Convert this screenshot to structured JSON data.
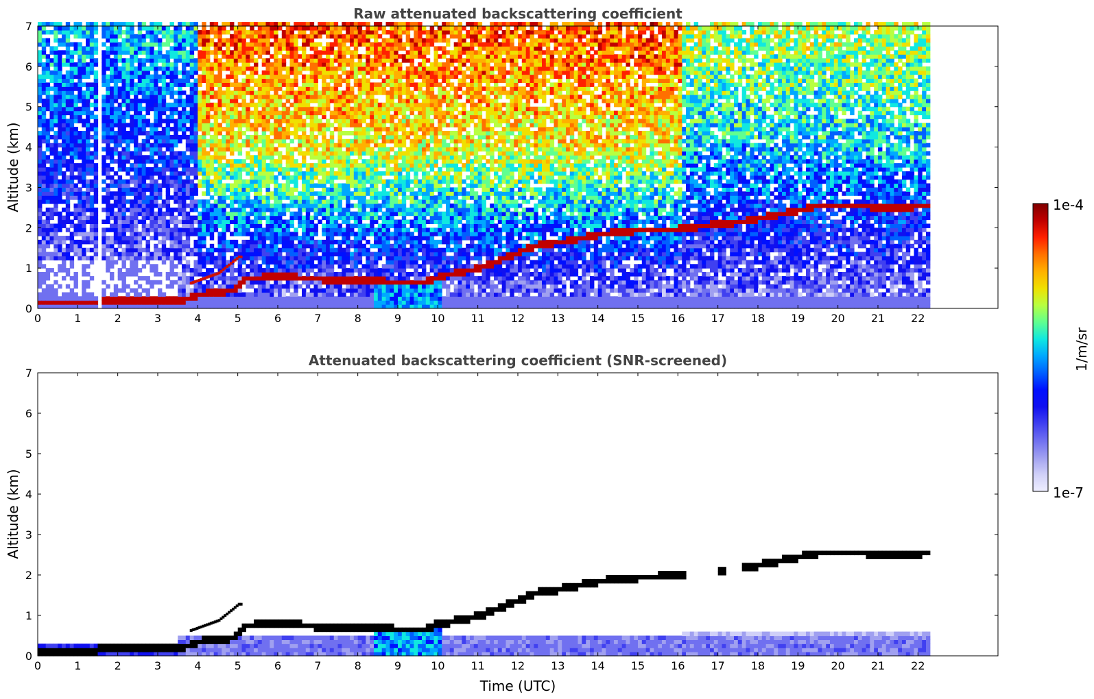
{
  "chart_data": [
    {
      "type": "heatmap",
      "title": "Raw attenuated backscattering coefficient",
      "xlabel": "",
      "ylabel": "Altitude (km)",
      "xlim": [
        0,
        24
      ],
      "ylim": [
        0,
        7
      ],
      "x_ticks": [
        "0",
        "1",
        "2",
        "3",
        "4",
        "5",
        "6",
        "7",
        "8",
        "9",
        "10",
        "11",
        "12",
        "13",
        "14",
        "15",
        "16",
        "17",
        "18",
        "19",
        "20",
        "21",
        "22"
      ],
      "y_ticks": [
        "0",
        "1",
        "2",
        "3",
        "4",
        "5",
        "6",
        "7"
      ],
      "data_end_hour": 22.3,
      "gap_hours": [
        1.45,
        1.55
      ],
      "layer": {
        "description_points_hour_km": [
          [
            0,
            0.08
          ],
          [
            1.4,
            0.08
          ],
          [
            1.6,
            0.15
          ],
          [
            3.5,
            0.12
          ],
          [
            4,
            0.3
          ],
          [
            4.8,
            0.4
          ],
          [
            5.2,
            0.7
          ],
          [
            6,
            0.75
          ],
          [
            7,
            0.68
          ],
          [
            8,
            0.65
          ],
          [
            9,
            0.6
          ],
          [
            9.6,
            0.6
          ],
          [
            10,
            0.75
          ],
          [
            11,
            0.95
          ],
          [
            12,
            1.35
          ],
          [
            12.5,
            1.55
          ],
          [
            13,
            1.6
          ],
          [
            14,
            1.8
          ],
          [
            15,
            1.9
          ],
          [
            15.9,
            1.92
          ],
          [
            17.5,
            2.1
          ],
          [
            18.5,
            2.3
          ],
          [
            19.5,
            2.5
          ],
          [
            20.5,
            2.5
          ],
          [
            21.2,
            2.45
          ],
          [
            22.3,
            2.5
          ]
        ],
        "secondary_points_hour_km": [
          [
            3.8,
            0.6
          ],
          [
            4.5,
            0.85
          ],
          [
            5.0,
            1.25
          ]
        ]
      },
      "colormap": "jet",
      "background_high_altitude_hours": [
        4,
        16
      ]
    },
    {
      "type": "heatmap",
      "title": "Attenuated backscattering coefficient (SNR-screened)",
      "xlabel": "Time (UTC)",
      "ylabel": "Altitude (km)",
      "xlim": [
        0,
        24
      ],
      "ylim": [
        0,
        7
      ],
      "x_ticks": [
        "0",
        "1",
        "2",
        "3",
        "4",
        "5",
        "6",
        "7",
        "8",
        "9",
        "10",
        "11",
        "12",
        "13",
        "14",
        "15",
        "16",
        "17",
        "18",
        "19",
        "20",
        "21",
        "22"
      ],
      "y_ticks": [
        "0",
        "1",
        "2",
        "3",
        "4",
        "5",
        "6",
        "7"
      ],
      "data_end_hour": 22.3,
      "colormap": "jet"
    }
  ],
  "colorbar": {
    "max_label": "1e-4",
    "min_label": "1e-7",
    "unit_label": "1/m/sr",
    "colors": [
      "#7f0000",
      "#c00000",
      "#ff2000",
      "#ff7000",
      "#ffb000",
      "#f0e000",
      "#b8ff40",
      "#60ff90",
      "#10e8e0",
      "#00a8ff",
      "#0060ff",
      "#0010ff",
      "#1010f0",
      "#4040f0",
      "#7070f0",
      "#a0a0f0",
      "#d0d0f8",
      "#eeeeff"
    ]
  }
}
